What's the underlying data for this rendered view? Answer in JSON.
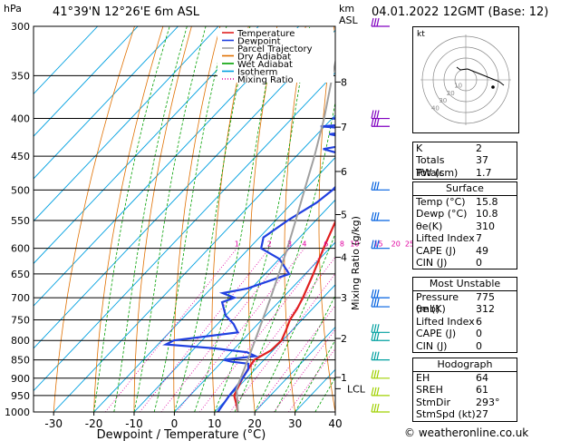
{
  "header": {
    "hpa_label": "hPa",
    "location": "41°39'N  12°26'E  6m  ASL",
    "km_label": "km",
    "asl_label": "ASL",
    "datetime": "04.01.2022  12GMT  (Base: 12)"
  },
  "chart_data": {
    "type": "line",
    "title": "41°39'N  12°26'E  6m  ASL",
    "xlabel": "Dewpoint / Temperature (°C)",
    "ylabel": "hPa",
    "y2label": "Mixing Ratio (g/kg)",
    "xlim": [
      -35,
      40
    ],
    "ylim": [
      1000,
      300
    ],
    "yscale": "log",
    "skew": true,
    "x_ticks": [
      -30,
      -20,
      -10,
      0,
      10,
      20,
      30,
      40
    ],
    "pressure_levels": [
      300,
      350,
      400,
      450,
      500,
      550,
      600,
      650,
      700,
      750,
      800,
      850,
      900,
      950,
      1000
    ],
    "km_ticks": [
      {
        "label": "8",
        "p": 357
      },
      {
        "label": "7",
        "p": 411
      },
      {
        "label": "6",
        "p": 472
      },
      {
        "label": "5",
        "p": 540
      },
      {
        "label": "4",
        "p": 617
      },
      {
        "label": "3",
        "p": 700
      },
      {
        "label": "2",
        "p": 795
      },
      {
        "label": "1",
        "p": 898
      }
    ],
    "lcl_label": "LCL",
    "lcl_p": 930,
    "mixing_ratio_labels": [
      "1",
      "2",
      "3",
      "4",
      "6",
      "8",
      "10",
      "15",
      "20",
      "25"
    ],
    "mixing_ratio_label_p": 600,
    "legend": {
      "position": "top-right",
      "items": [
        {
          "name": "Temperature",
          "color": "#e02020",
          "dash": "solid"
        },
        {
          "name": "Dewpoint",
          "color": "#2040e0",
          "dash": "solid"
        },
        {
          "name": "Parcel Trajectory",
          "color": "#a0a0a0",
          "dash": "solid"
        },
        {
          "name": "Dry Adiabat",
          "color": "#e07000",
          "dash": "solid"
        },
        {
          "name": "Wet Adiabat",
          "color": "#00a000",
          "dash": "solid"
        },
        {
          "name": "Isotherm",
          "color": "#00a0e0",
          "dash": "solid"
        },
        {
          "name": "Mixing Ratio",
          "color": "#e000a0",
          "dash": "dotted"
        }
      ]
    },
    "series": [
      {
        "name": "Temperature",
        "color": "#e02020",
        "points": [
          [
            1000,
            15.8
          ],
          [
            975,
            13.5
          ],
          [
            950,
            11
          ],
          [
            925,
            10
          ],
          [
            900,
            9
          ],
          [
            875,
            8.2
          ],
          [
            850,
            7.6
          ],
          [
            825,
            9.5
          ],
          [
            800,
            9.8
          ],
          [
            775,
            8.5
          ],
          [
            750,
            7
          ],
          [
            725,
            6.2
          ],
          [
            700,
            5
          ],
          [
            650,
            2
          ],
          [
            600,
            -1.5
          ],
          [
            550,
            -5
          ],
          [
            500,
            -10
          ],
          [
            450,
            -15.5
          ],
          [
            400,
            -21
          ],
          [
            350,
            -28
          ],
          [
            300,
            -37
          ]
        ]
      },
      {
        "name": "Dewpoint",
        "color": "#2040e0",
        "points": [
          [
            1000,
            10.8
          ],
          [
            975,
            10.3
          ],
          [
            950,
            9.8
          ],
          [
            925,
            9.5
          ],
          [
            900,
            9
          ],
          [
            875,
            8.3
          ],
          [
            860,
            7
          ],
          [
            855,
            2.5
          ],
          [
            850,
            0
          ],
          [
            840,
            7
          ],
          [
            830,
            4
          ],
          [
            820,
            -5
          ],
          [
            810,
            -18
          ],
          [
            800,
            -17
          ],
          [
            780,
            -3
          ],
          [
            760,
            -6
          ],
          [
            740,
            -10
          ],
          [
            710,
            -14
          ],
          [
            700,
            -12
          ],
          [
            690,
            -16
          ],
          [
            680,
            -11
          ],
          [
            650,
            -4
          ],
          [
            620,
            -10
          ],
          [
            600,
            -17
          ],
          [
            580,
            -19
          ],
          [
            550,
            -17
          ],
          [
            520,
            -14
          ],
          [
            500,
            -13
          ],
          [
            480,
            -13
          ],
          [
            460,
            -16
          ],
          [
            450,
            -17
          ],
          [
            440,
            -25
          ],
          [
            430,
            -16
          ],
          [
            420,
            -27
          ],
          [
            415,
            -18
          ],
          [
            410,
            -31
          ],
          [
            405,
            -19
          ],
          [
            400,
            -30
          ],
          [
            395,
            -21
          ],
          [
            380,
            -17
          ],
          [
            370,
            -25
          ],
          [
            360,
            -19
          ],
          [
            350,
            -32
          ],
          [
            340,
            -29
          ],
          [
            320,
            -32
          ],
          [
            300,
            -37
          ]
        ]
      },
      {
        "name": "Parcel Trajectory",
        "color": "#a0a0a0",
        "points": [
          [
            1000,
            15.8
          ],
          [
            930,
            10
          ],
          [
            900,
            8.5
          ],
          [
            850,
            6
          ],
          [
            800,
            3.2
          ],
          [
            750,
            0.2
          ],
          [
            700,
            -3
          ],
          [
            650,
            -6.6
          ],
          [
            600,
            -10.5
          ],
          [
            550,
            -15
          ],
          [
            500,
            -20
          ],
          [
            450,
            -25.5
          ],
          [
            400,
            -32
          ],
          [
            350,
            -40
          ],
          [
            300,
            -49
          ]
        ]
      }
    ]
  },
  "hodograph": {
    "label": "kt",
    "ring_labels": [
      "10",
      "20",
      "30",
      "40"
    ]
  },
  "indices": [
    {
      "k": "K",
      "v": "2"
    },
    {
      "k": "Totals Totals",
      "v": "37"
    },
    {
      "k": "PW (cm)",
      "v": "1.7"
    }
  ],
  "surface": {
    "title": "Surface",
    "rows": [
      {
        "k": "Temp (°C)",
        "v": "15.8"
      },
      {
        "k": "Dewp (°C)",
        "v": "10.8"
      },
      {
        "k": "θe(K)",
        "v": "310"
      },
      {
        "k": "Lifted Index",
        "v": "7"
      },
      {
        "k": "CAPE (J)",
        "v": "49"
      },
      {
        "k": "CIN (J)",
        "v": "0"
      }
    ]
  },
  "most_unstable": {
    "title": "Most Unstable",
    "rows": [
      {
        "k": "Pressure (mb)",
        "v": "775"
      },
      {
        "k": "θe (K)",
        "v": "312"
      },
      {
        "k": "Lifted Index",
        "v": "6"
      },
      {
        "k": "CAPE (J)",
        "v": "0"
      },
      {
        "k": "CIN (J)",
        "v": "0"
      }
    ]
  },
  "hodograph_table": {
    "title": "Hodograph",
    "rows": [
      {
        "k": "EH",
        "v": "64"
      },
      {
        "k": "SREH",
        "v": "61"
      },
      {
        "k": "StmDir",
        "v": "293°"
      },
      {
        "k": "StmSpd (kt)",
        "v": "27"
      }
    ]
  },
  "footer": {
    "copyright": "© weatheronline.co.uk"
  },
  "colors": {
    "isobar": "#000000",
    "isotherm": "#00a0e0",
    "dry": "#e07000",
    "wet": "#00a000",
    "mix": "#e000a0",
    "wind_upper": "#8000c0",
    "wind_mid": "#0060e0",
    "wind_low": "#00a0a0",
    "wind_sfc": "#a0d000"
  }
}
